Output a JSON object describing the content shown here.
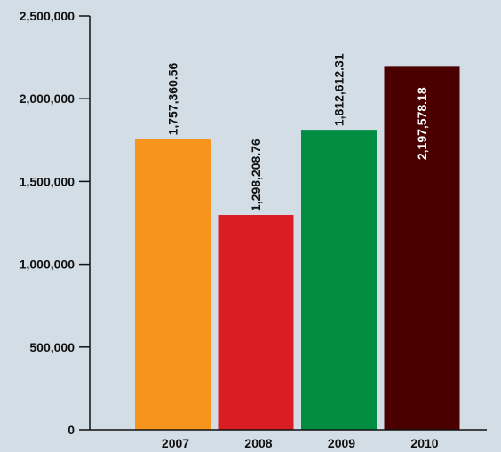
{
  "chart_data": {
    "type": "bar",
    "title": "",
    "xlabel": "",
    "ylabel": "",
    "categories": [
      "2007",
      "2008",
      "2009",
      "2010"
    ],
    "values": [
      1757360.56,
      1298208.76,
      1812612.31,
      2197578.18
    ],
    "value_labels": [
      "1,757,360.56",
      "1,298,208.76",
      "1,812,612.31",
      "2,197,578.18"
    ],
    "bar_colors": [
      "#f7941d",
      "#da1c23",
      "#008d41",
      "#4b0000"
    ],
    "value_label_colors": [
      "#111111",
      "#111111",
      "#111111",
      "#ffffff"
    ],
    "value_label_position": [
      "above-bar",
      "above-bar",
      "above-bar",
      "inside-bar-top"
    ],
    "ylim": [
      0,
      2500000
    ],
    "yticks": [
      0,
      500000,
      1000000,
      1500000,
      2000000,
      2500000
    ],
    "ytick_labels": [
      "0",
      "500,000",
      "1,000,000",
      "1,500,000",
      "2,000,000",
      "2,500,000"
    ],
    "grid": false,
    "legend": "none"
  },
  "colors": {
    "background": "#d3dde6",
    "axis": "#111111"
  }
}
